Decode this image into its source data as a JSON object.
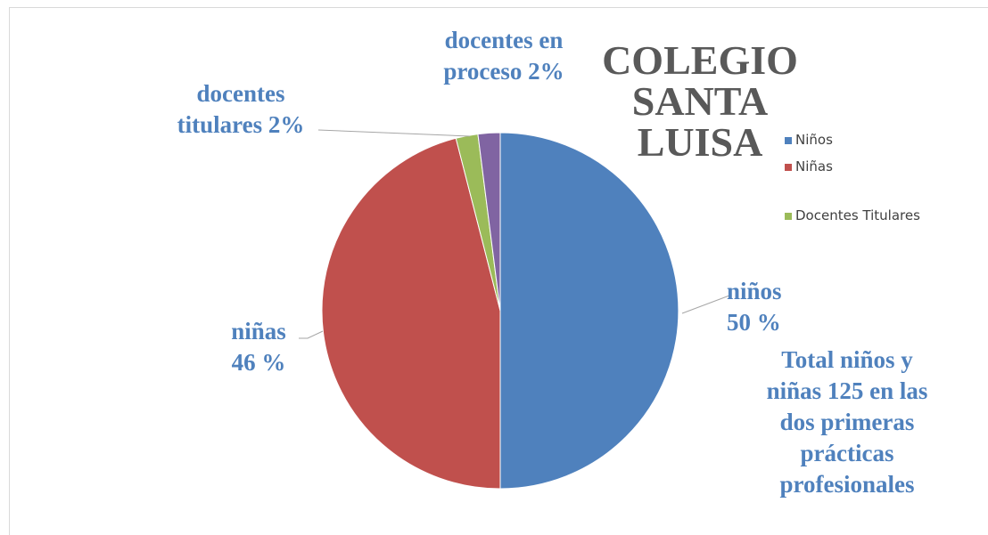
{
  "chart_data": {
    "type": "pie",
    "title": "COLEGIO SANTA LUISA",
    "categories": [
      "Niños",
      "Niñas",
      "Docentes Titulares",
      null
    ],
    "values": [
      50,
      46,
      2,
      2
    ],
    "value_labels": [
      "niños 50 %",
      "niñas 46 %",
      "docentes titulares 2%",
      "docentes en proceso 2%"
    ],
    "colors": [
      "#4f81bd",
      "#c0504d",
      "#9bbb59",
      "#8064a2"
    ],
    "annotation": "Total niños y niñas 125  en las dos primeras prácticas profesionales",
    "legend": "right"
  }
}
